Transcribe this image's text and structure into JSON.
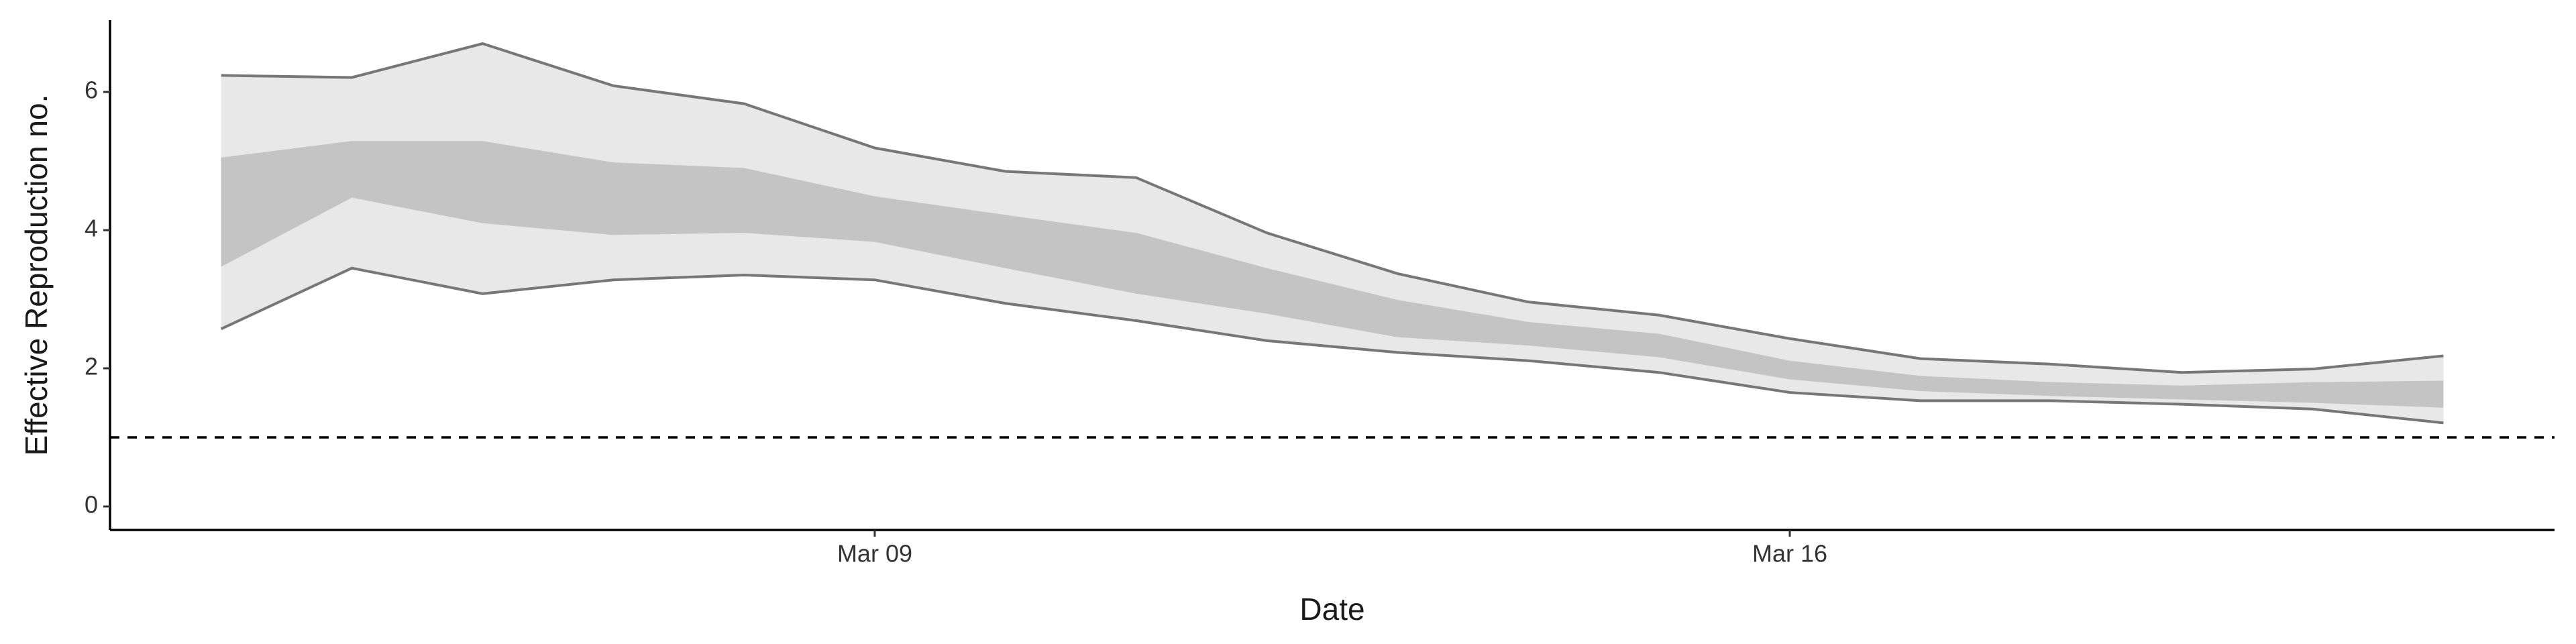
{
  "chart_data": {
    "type": "band",
    "xlabel": "Date",
    "ylabel": "Effective Reproduction no.",
    "x": [
      "Mar 04",
      "Mar 05",
      "Mar 06",
      "Mar 07",
      "Mar 08",
      "Mar 09",
      "Mar 10",
      "Mar 11",
      "Mar 12",
      "Mar 13",
      "Mar 14",
      "Mar 15",
      "Mar 16",
      "Mar 17",
      "Mar 18",
      "Mar 19",
      "Mar 20",
      "Mar 21"
    ],
    "xticks": [
      "Mar 09",
      "Mar 16"
    ],
    "ylim": [
      -0.34,
      7.04
    ],
    "yticks": [
      0,
      2,
      4,
      6
    ],
    "hline": 1,
    "bands": [
      {
        "color": "#e8e8e8",
        "edge_color": "#777777",
        "upper": [
          6.24,
          6.21,
          6.7,
          6.09,
          5.83,
          5.19,
          4.85,
          4.76,
          3.96,
          3.37,
          2.96,
          2.77,
          2.43,
          2.14,
          2.06,
          1.94,
          1.99,
          2.18
        ],
        "lower": [
          2.57,
          3.45,
          3.08,
          3.28,
          3.35,
          3.28,
          2.94,
          2.69,
          2.4,
          2.23,
          2.11,
          1.94,
          1.65,
          1.53,
          1.53,
          1.48,
          1.41,
          1.21
        ]
      },
      {
        "color": "#c4c4c4",
        "upper": [
          5.05,
          5.29,
          5.29,
          4.98,
          4.9,
          4.49,
          4.22,
          3.96,
          3.45,
          2.99,
          2.67,
          2.5,
          2.11,
          1.89,
          1.8,
          1.75,
          1.8,
          1.82
        ],
        "lower": [
          3.47,
          4.47,
          4.1,
          3.93,
          3.96,
          3.83,
          3.45,
          3.08,
          2.79,
          2.45,
          2.33,
          2.16,
          1.84,
          1.67,
          1.6,
          1.55,
          1.5,
          1.43
        ]
      }
    ]
  }
}
